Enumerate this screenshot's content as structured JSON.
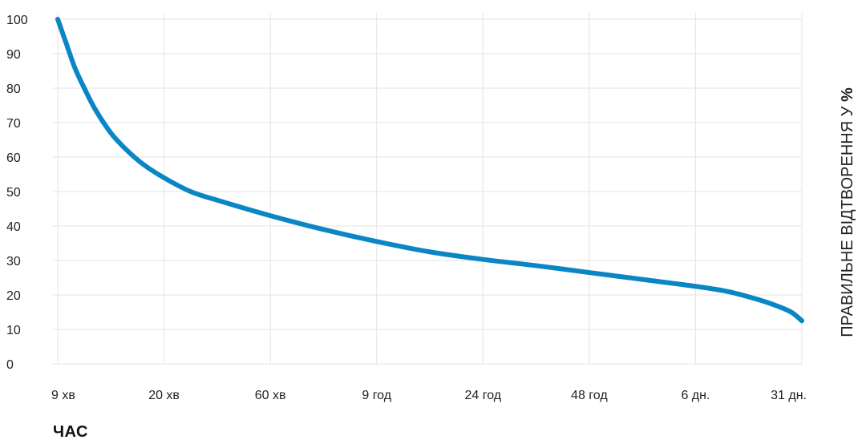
{
  "chart_data": {
    "type": "line",
    "title": "",
    "xlabel": "ЧАС",
    "ylabel": "ПРАВИЛЬНЕ ВІДТВОРЕННЯ У",
    "ylabel_suffix": "%",
    "ylim": [
      0,
      100
    ],
    "yticks": [
      0,
      10,
      20,
      30,
      40,
      50,
      60,
      70,
      80,
      90,
      100
    ],
    "categories": [
      "9 хв",
      "20 хв",
      "60 хв",
      "9 год",
      "24 год",
      "48 год",
      "6 дн.",
      "31 дн."
    ],
    "grid": true,
    "series": [
      {
        "color": "#0a86c5",
        "points": [
          [
            0,
            100
          ],
          [
            0.08,
            93
          ],
          [
            0.16,
            86
          ],
          [
            0.25,
            80
          ],
          [
            0.35,
            74
          ],
          [
            0.5,
            67
          ],
          [
            0.65,
            62
          ],
          [
            0.8,
            58
          ],
          [
            1.0,
            54
          ],
          [
            1.25,
            50
          ],
          [
            1.5,
            47.5
          ],
          [
            2.0,
            43
          ],
          [
            2.5,
            39
          ],
          [
            3.0,
            35.5
          ],
          [
            3.5,
            32.5
          ],
          [
            4.0,
            30.3
          ],
          [
            4.5,
            28.5
          ],
          [
            5.0,
            26.5
          ],
          [
            5.5,
            24.5
          ],
          [
            6.0,
            22.5
          ],
          [
            6.3,
            21
          ],
          [
            6.55,
            19
          ],
          [
            6.75,
            17
          ],
          [
            6.9,
            15
          ],
          [
            7.0,
            12.5
          ]
        ]
      }
    ],
    "colors": {
      "line": "#0a86c5",
      "grid": "#e3e3e3"
    }
  }
}
